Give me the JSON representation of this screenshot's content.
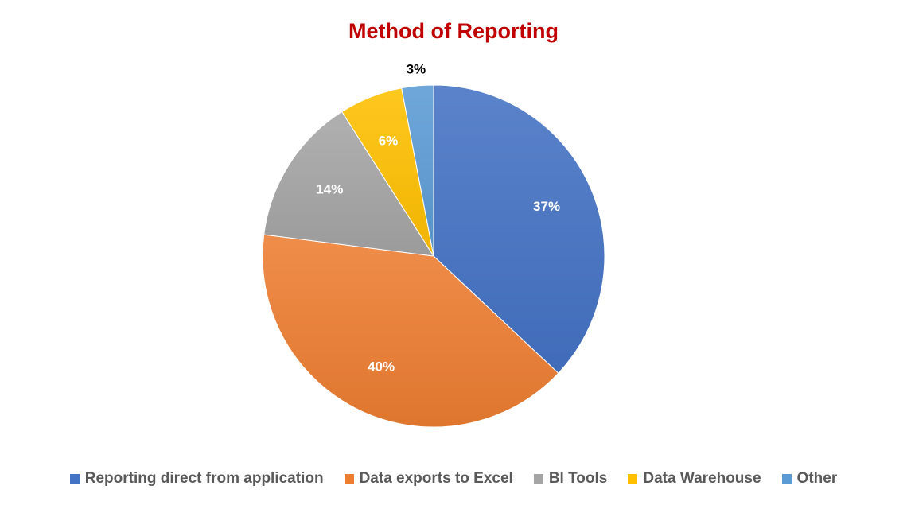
{
  "chart_data": {
    "type": "pie",
    "title": "Method of Reporting",
    "slices": [
      {
        "label": "Reporting direct from application",
        "value": 37,
        "value_label": "37%",
        "color": "#4472c4",
        "label_color": "#ffffff"
      },
      {
        "label": "Data exports to Excel",
        "value": 40,
        "value_label": "40%",
        "color": "#ed7d31",
        "label_color": "#ffffff"
      },
      {
        "label": "BI Tools",
        "value": 14,
        "value_label": "14%",
        "color": "#a5a5a5",
        "label_color": "#ffffff"
      },
      {
        "label": "Data Warehouse",
        "value": 6,
        "value_label": "6%",
        "color": "#ffc000",
        "label_color": "#ffffff"
      },
      {
        "label": "Other",
        "value": 3,
        "value_label": "3%",
        "color": "#5b9bd5",
        "label_color": "#000000"
      }
    ],
    "start_angle": "12 o'clock",
    "direction": "clockwise",
    "legend_position": "bottom",
    "grid": false
  }
}
